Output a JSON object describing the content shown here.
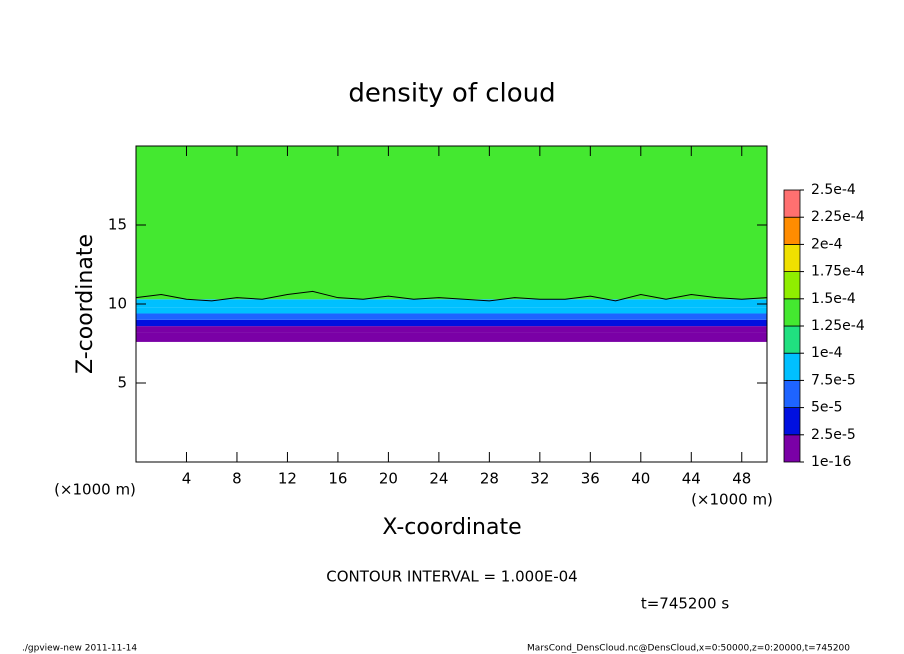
{
  "chart_data": {
    "type": "contour",
    "title": "density of cloud",
    "xlabel": "X-coordinate",
    "ylabel": "Z-coordinate",
    "x_unit": "(×1000 m)",
    "y_unit": "(×1000 m)",
    "xlim": [
      0,
      50
    ],
    "ylim": [
      0,
      20
    ],
    "xticks": [
      4,
      8,
      12,
      16,
      20,
      24,
      28,
      32,
      36,
      40,
      44,
      48
    ],
    "yticks": [
      5,
      10,
      15
    ],
    "ybins": [
      7.6,
      8.2,
      8.6,
      9.0,
      9.4,
      9.8,
      10.3,
      20
    ],
    "values": [
      5e-06,
      1.5e-05,
      3e-05,
      5.5e-05,
      8e-05,
      9e-05,
      0.00013
    ],
    "contour": {
      "x": [
        0,
        2,
        4,
        6,
        8,
        10,
        12,
        14,
        16,
        18,
        20,
        22,
        24,
        26,
        28,
        30,
        32,
        34,
        36,
        38,
        40,
        42,
        44,
        46,
        48,
        50
      ],
      "y": [
        10.4,
        10.6,
        10.3,
        10.2,
        10.4,
        10.3,
        10.6,
        10.8,
        10.4,
        10.3,
        10.5,
        10.3,
        10.4,
        10.3,
        10.2,
        10.4,
        10.3,
        10.3,
        10.5,
        10.2,
        10.6,
        10.3,
        10.6,
        10.4,
        10.3,
        10.4
      ]
    },
    "colorbar": {
      "levels": [
        {
          "value": 1e-16,
          "label": "1e-16"
        },
        {
          "value": 2.5e-05,
          "label": "2.5e-5"
        },
        {
          "value": 5e-05,
          "label": "5e-5"
        },
        {
          "value": 7.5e-05,
          "label": "7.5e-5"
        },
        {
          "value": 0.0001,
          "label": "1e-4"
        },
        {
          "value": 0.000125,
          "label": "1.25e-4"
        },
        {
          "value": 0.00015,
          "label": "1.5e-4"
        },
        {
          "value": 0.000175,
          "label": "1.75e-4"
        },
        {
          "value": 0.0002,
          "label": "2e-4"
        },
        {
          "value": 0.000225,
          "label": "2.25e-4"
        },
        {
          "value": 0.00025,
          "label": "2.5e-4"
        }
      ],
      "colors": [
        "#7a00a6",
        "#0010e0",
        "#1e64ff",
        "#00c0ff",
        "#20e080",
        "#44e830",
        "#90ee00",
        "#f0e000",
        "#ff8c00",
        "#ff7070"
      ]
    },
    "contour_interval": "CONTOUR INTERVAL = 1.000E-04",
    "time": "t=745200 s",
    "footer_left": "./gpview-new  2011-11-14",
    "footer_right": "MarsCond_DensCloud.nc@DensCloud,x=0:50000,z=0:20000,t=745200"
  }
}
